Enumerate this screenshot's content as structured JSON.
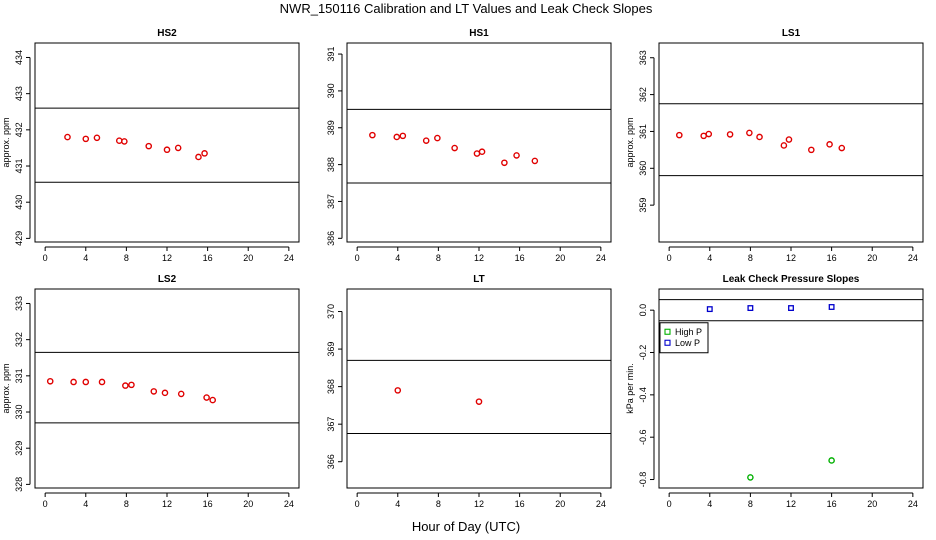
{
  "figure": {
    "title": "NWR_150116  Calibration and LT Values and Leak Check Slopes",
    "xlabel": "Hour of Day (UTC)"
  },
  "chart_data": [
    {
      "type": "scatter",
      "title": "HS2",
      "xlabel": "",
      "ylabel": "approx. ppm",
      "xlim": [
        -1,
        25
      ],
      "xticks": [
        0,
        4,
        8,
        12,
        16,
        20,
        24
      ],
      "ylim": [
        428.9,
        434.4
      ],
      "yticks": [
        429,
        430,
        431,
        432,
        433,
        434
      ],
      "hlines": [
        432.6,
        430.55
      ],
      "marker_color": "#e00000",
      "series": [
        {
          "x": [
            2.2,
            4.0,
            5.1,
            7.3,
            7.8,
            10.2,
            12.0,
            13.1,
            15.1,
            15.7
          ],
          "y": [
            431.8,
            431.75,
            431.78,
            431.7,
            431.68,
            431.55,
            431.45,
            431.5,
            431.25,
            431.35
          ]
        }
      ]
    },
    {
      "type": "scatter",
      "title": "HS1",
      "xlabel": "",
      "ylabel": "",
      "xlim": [
        -1,
        25
      ],
      "xticks": [
        0,
        4,
        8,
        12,
        16,
        20,
        24
      ],
      "ylim": [
        385.9,
        391.3
      ],
      "yticks": [
        386,
        387,
        388,
        389,
        390,
        391
      ],
      "hlines": [
        389.5,
        387.5
      ],
      "marker_color": "#e00000",
      "series": [
        {
          "x": [
            1.5,
            3.9,
            4.5,
            6.8,
            7.9,
            9.6,
            11.8,
            12.3,
            14.5,
            15.7,
            17.5
          ],
          "y": [
            388.8,
            388.75,
            388.78,
            388.65,
            388.72,
            388.45,
            388.3,
            388.35,
            388.05,
            388.25,
            388.1
          ]
        }
      ]
    },
    {
      "type": "scatter",
      "title": "LS1",
      "xlabel": "",
      "ylabel": "approx. ppm",
      "xlim": [
        -1,
        25
      ],
      "xticks": [
        0,
        4,
        8,
        12,
        16,
        20,
        24
      ],
      "ylim": [
        358.0,
        363.4
      ],
      "yticks": [
        359,
        360,
        361,
        362,
        363
      ],
      "hlines": [
        361.75,
        359.8
      ],
      "marker_color": "#e00000",
      "series": [
        {
          "x": [
            1.0,
            3.4,
            3.9,
            6.0,
            7.9,
            8.9,
            11.3,
            11.8,
            14.0,
            15.8,
            17.0
          ],
          "y": [
            360.9,
            360.88,
            360.93,
            360.92,
            360.96,
            360.85,
            360.62,
            360.78,
            360.5,
            360.65,
            360.55
          ]
        }
      ]
    },
    {
      "type": "scatter",
      "title": "LS2",
      "xlabel": "",
      "ylabel": "approx. ppm",
      "xlim": [
        -1,
        25
      ],
      "xticks": [
        0,
        4,
        8,
        12,
        16,
        20,
        24
      ],
      "ylim": [
        327.9,
        333.4
      ],
      "yticks": [
        328,
        329,
        330,
        331,
        332,
        333
      ],
      "hlines": [
        331.65,
        329.7
      ],
      "marker_color": "#e00000",
      "series": [
        {
          "x": [
            0.5,
            2.8,
            4.0,
            5.6,
            7.9,
            8.5,
            10.7,
            11.8,
            13.4,
            15.9,
            16.5
          ],
          "y": [
            330.85,
            330.83,
            330.83,
            330.83,
            330.73,
            330.75,
            330.57,
            330.53,
            330.5,
            330.4,
            330.33
          ]
        }
      ]
    },
    {
      "type": "scatter",
      "title": "LT",
      "xlabel": "",
      "ylabel": "",
      "xlim": [
        -1,
        25
      ],
      "xticks": [
        0,
        4,
        8,
        12,
        16,
        20,
        24
      ],
      "ylim": [
        365.3,
        370.6
      ],
      "yticks": [
        366,
        367,
        368,
        369,
        370
      ],
      "hlines": [
        368.7,
        366.75
      ],
      "marker_color": "#e00000",
      "series": [
        {
          "x": [
            4.0,
            12.0
          ],
          "y": [
            367.9,
            367.6
          ]
        }
      ]
    },
    {
      "type": "scatter",
      "title": "Leak Check Pressure Slopes",
      "xlabel": "",
      "ylabel": "kPa per min.",
      "xlim": [
        -1,
        25
      ],
      "xticks": [
        0,
        4,
        8,
        12,
        16,
        20,
        24
      ],
      "ylim": [
        -0.84,
        0.1
      ],
      "yticks": [
        0.0,
        -0.2,
        -0.4,
        -0.6,
        -0.8
      ],
      "ytick_labels": [
        "0.0",
        "-0.2",
        "-0.4",
        "-0.6",
        "-0.8"
      ],
      "hlines": [
        0.05,
        -0.05
      ],
      "legend": "top-left",
      "series": [
        {
          "name": "High P",
          "color": "#00b000",
          "marker": "circle",
          "x": [
            8,
            16
          ],
          "y": [
            -0.79,
            -0.71
          ]
        },
        {
          "name": "Low P",
          "color": "#0000cc",
          "marker": "square",
          "x": [
            4,
            8,
            12,
            16
          ],
          "y": [
            0.005,
            0.01,
            0.01,
            0.015
          ]
        }
      ]
    }
  ]
}
